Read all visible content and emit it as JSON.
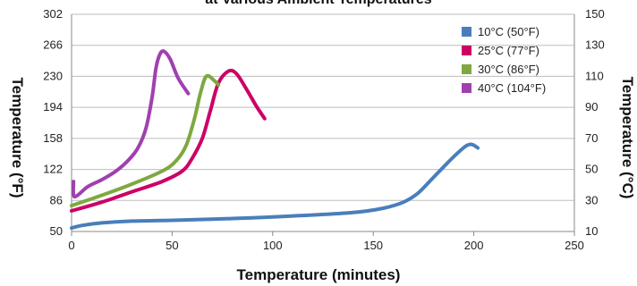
{
  "chart_data": {
    "type": "line",
    "title": "at Various Ambient Temperatures",
    "xlabel": "Temperature (minutes)",
    "ylabel_left": "Temperature (°F)",
    "ylabel_right": "Temperature (°C)",
    "xlim": [
      0,
      250
    ],
    "ylim_left": [
      50,
      302
    ],
    "ylim_right": [
      10,
      150
    ],
    "x_ticks": [
      "0",
      "50",
      "100",
      "150",
      "200",
      "250"
    ],
    "y_ticks_left": [
      "50",
      "86",
      "122",
      "158",
      "194",
      "230",
      "266",
      "302"
    ],
    "y_ticks_right": [
      "10",
      "30",
      "50",
      "70",
      "90",
      "110",
      "130",
      "150"
    ],
    "grid": true,
    "legend_position": "top-right",
    "series": [
      {
        "name": "10°C (50°F)",
        "color": "#4a7ebb",
        "points": [
          [
            0,
            54
          ],
          [
            5,
            57
          ],
          [
            15,
            60
          ],
          [
            30,
            62
          ],
          [
            50,
            63
          ],
          [
            80,
            65
          ],
          [
            110,
            68
          ],
          [
            140,
            72
          ],
          [
            155,
            77
          ],
          [
            165,
            84
          ],
          [
            172,
            94
          ],
          [
            178,
            108
          ],
          [
            185,
            125
          ],
          [
            191,
            139
          ],
          [
            196,
            149
          ],
          [
            199,
            151
          ],
          [
            202,
            147
          ]
        ]
      },
      {
        "name": "25°C (77°F)",
        "color": "#cc0066",
        "points": [
          [
            0,
            74
          ],
          [
            15,
            84
          ],
          [
            30,
            96
          ],
          [
            45,
            108
          ],
          [
            55,
            120
          ],
          [
            60,
            135
          ],
          [
            65,
            158
          ],
          [
            69,
            190
          ],
          [
            73,
            222
          ],
          [
            78,
            236
          ],
          [
            82,
            233
          ],
          [
            87,
            215
          ],
          [
            92,
            195
          ],
          [
            96,
            181
          ]
        ]
      },
      {
        "name": "30°C (86°F)",
        "color": "#7ea840",
        "points": [
          [
            0,
            80
          ],
          [
            15,
            92
          ],
          [
            30,
            105
          ],
          [
            45,
            120
          ],
          [
            52,
            132
          ],
          [
            57,
            150
          ],
          [
            61,
            180
          ],
          [
            64,
            210
          ],
          [
            67,
            230
          ],
          [
            71,
            225
          ],
          [
            73,
            220
          ]
        ]
      },
      {
        "name": "40°C (104°F)",
        "color": "#a040b0",
        "points": [
          [
            1,
            108
          ],
          [
            1,
            92
          ],
          [
            3,
            92
          ],
          [
            8,
            102
          ],
          [
            15,
            110
          ],
          [
            22,
            120
          ],
          [
            28,
            132
          ],
          [
            33,
            147
          ],
          [
            37,
            170
          ],
          [
            40,
            205
          ],
          [
            42,
            240
          ],
          [
            44,
            256
          ],
          [
            46,
            259
          ],
          [
            49,
            250
          ],
          [
            53,
            228
          ],
          [
            58,
            210
          ]
        ]
      }
    ]
  }
}
